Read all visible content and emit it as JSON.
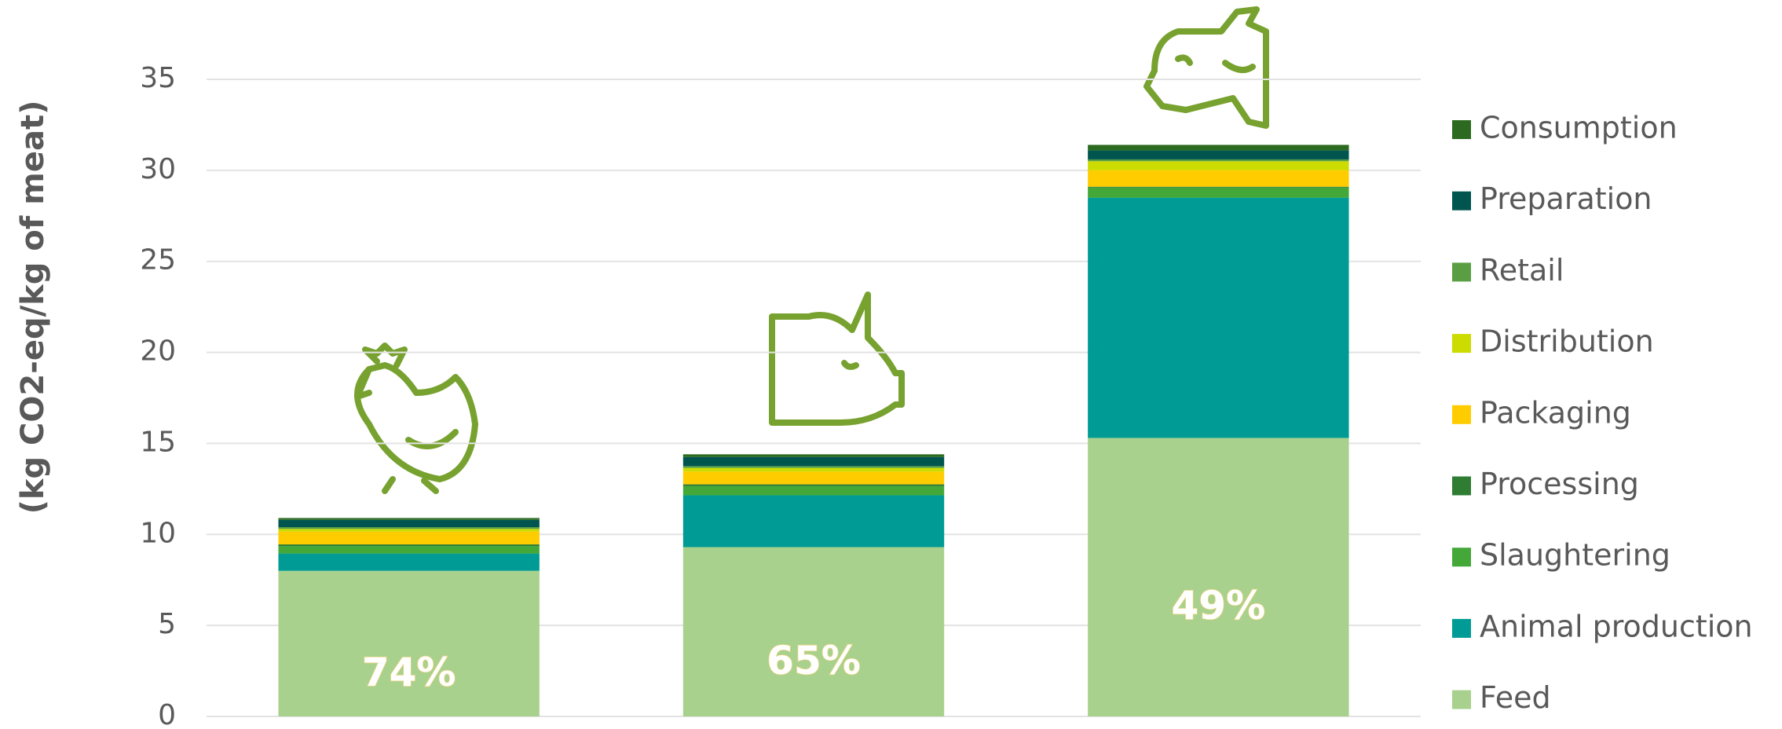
{
  "chart_data": {
    "type": "stacked_bar",
    "y_label": "(kg CO2-eq/kg of meat)",
    "categories": [
      null,
      null,
      null
    ],
    "series": [
      {
        "name": "Feed",
        "color": "#a9d18e",
        "values": [
          8.0,
          9.3,
          15.3
        ]
      },
      {
        "name": "Animal production",
        "color": "#009b95",
        "values": [
          0.95,
          2.85,
          13.2
        ]
      },
      {
        "name": "Slaughtering",
        "color": "#43a838",
        "values": [
          0.4,
          0.5,
          0.55
        ]
      },
      {
        "name": "Processing",
        "color": "#2e7d32",
        "values": [
          0.1,
          0.1,
          0.05
        ]
      },
      {
        "name": "Packaging",
        "color": "#ffcc00",
        "values": [
          0.7,
          0.7,
          0.9
        ]
      },
      {
        "name": "Distribution",
        "color": "#cddc00",
        "values": [
          0.15,
          0.2,
          0.5
        ]
      },
      {
        "name": "Retail",
        "color": "#5a9e44",
        "values": [
          0.1,
          0.1,
          0.1
        ]
      },
      {
        "name": "Preparation",
        "color": "#00564f",
        "values": [
          0.4,
          0.5,
          0.5
        ]
      },
      {
        "name": "Consumption",
        "color": "#2b6a1f",
        "values": [
          0.1,
          0.15,
          0.3
        ]
      }
    ],
    "annotations": [
      "74%",
      "65%",
      "49%"
    ],
    "ylim": [
      0,
      35
    ],
    "yticks": [
      0,
      5,
      10,
      15,
      20,
      25,
      30,
      35
    ],
    "grid": true,
    "legend": "right"
  }
}
